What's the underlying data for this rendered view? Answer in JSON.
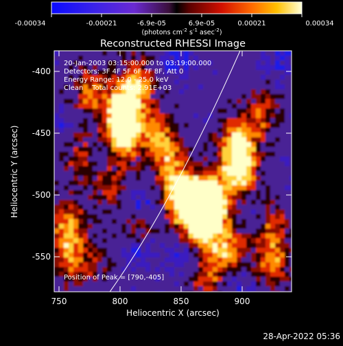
{
  "colorbar": {
    "ticks": [
      "-0.00034",
      "-0.00021",
      "-6.9e-05",
      "6.9e-05",
      "0.00021",
      "0.00034"
    ],
    "units_main": "(photons cm",
    "units_sup1": "-2",
    "units_mid1": " s",
    "units_sup2": "-1",
    "units_mid2": " asec",
    "units_sup3": "-2",
    "units_end": ")"
  },
  "title": "Reconstructed RHESSI Image",
  "annotations": {
    "time_range": "20-Jan-2003 03:15:00.000 to 03:19:00.000",
    "detectors": "Detectors: 3F 4F 5F 6F 7F 8F, Att 0",
    "energy": "Energy Range: 12.0 - 25.0 keV",
    "clean": "Clean    Total counts: 2.91E+03",
    "peak": "Position of Peak = [790,-405]"
  },
  "axes": {
    "xlabel": "Heliocentric X (arcsec)",
    "ylabel": "Heliocentric Y (arcsec)",
    "xticks": [
      "750",
      "800",
      "850",
      "900"
    ],
    "yticks": [
      "-400",
      "-450",
      "-500",
      "-550"
    ]
  },
  "footer": {
    "date": "28-Apr-2022 05:36"
  },
  "colors": {
    "background": "#000000",
    "text": "#ffffff",
    "limb": "#ffffff"
  }
}
